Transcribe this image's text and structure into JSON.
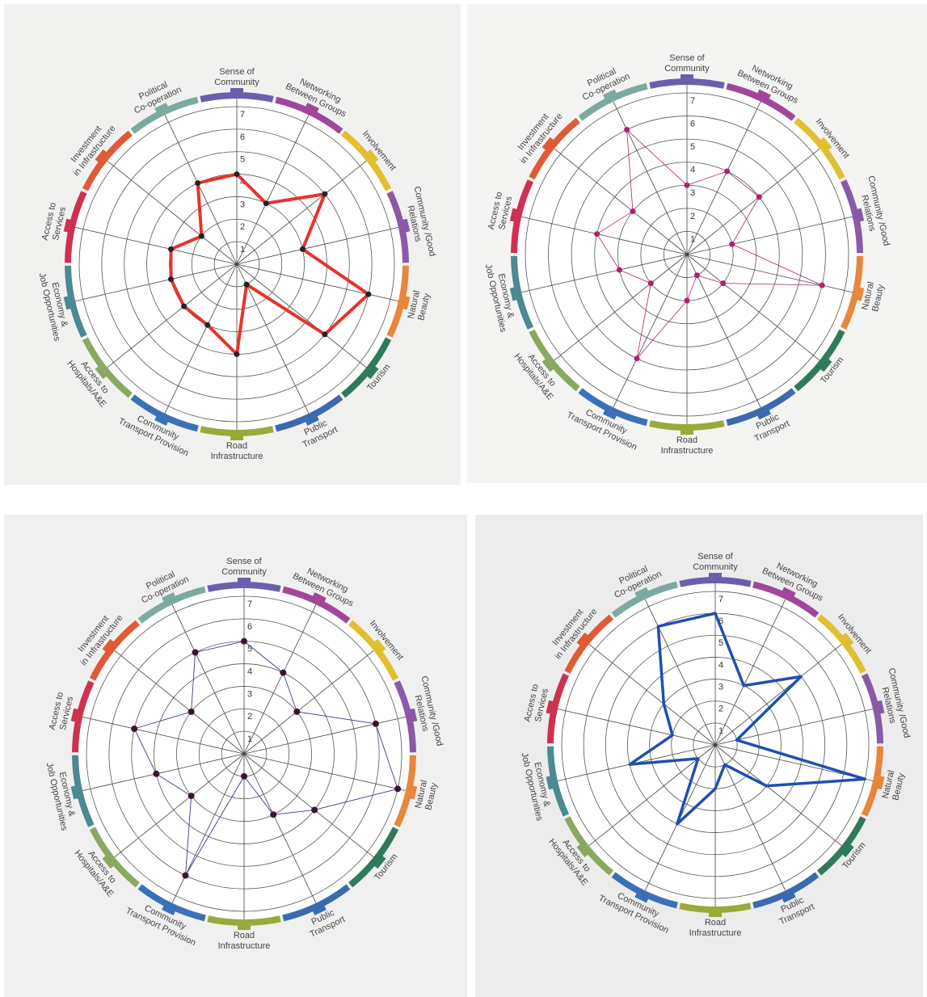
{
  "chart_data": [
    {
      "type": "radar",
      "categories": [
        [
          "Sense of",
          "Community"
        ],
        [
          "Networking",
          "Between Groups"
        ],
        [
          "Involvement"
        ],
        [
          "Community /Good",
          "Relations"
        ],
        [
          "Natural",
          "Beauty"
        ],
        [
          "Tourism"
        ],
        [
          "Public",
          "Transport"
        ],
        [
          "Road",
          "Infrastructure"
        ],
        [
          "Community",
          "Transport Provision"
        ],
        [
          "Access to",
          "Hospitals/A&E"
        ],
        [
          "Economy &",
          "Job Opportunities"
        ],
        [
          "Access to",
          "Services"
        ],
        [
          "Investment",
          "in Infrastructure"
        ],
        [
          "Political",
          "Co-operation"
        ]
      ],
      "values": [
        4,
        3,
        5,
        3,
        6,
        5,
        1,
        4,
        3,
        3,
        3,
        3,
        2,
        4
      ],
      "color": "#e8322c",
      "ylim": [
        0,
        7
      ],
      "yticks": [
        1,
        2,
        3,
        4,
        5,
        6,
        7
      ]
    },
    {
      "type": "radar",
      "categories": [
        [
          "Sense of",
          "Community"
        ],
        [
          "Networking",
          "Between Groups"
        ],
        [
          "Involvement"
        ],
        [
          "Community /Good",
          "Relations"
        ],
        [
          "Natural",
          "Beauty"
        ],
        [
          "Tourism"
        ],
        [
          "Public",
          "Transport"
        ],
        [
          "Road",
          "Infrastructure"
        ],
        [
          "Community",
          "Transport Provision"
        ],
        [
          "Access to",
          "Hospitals/A&E"
        ],
        [
          "Economy &",
          "Job Opportunities"
        ],
        [
          "Access to",
          "Services"
        ],
        [
          "Investment",
          "in Infrastructure"
        ],
        [
          "Political",
          "Co-operation"
        ]
      ],
      "values": [
        3,
        4,
        4,
        2,
        6,
        2,
        1,
        2,
        5,
        2,
        3,
        4,
        3,
        6
      ],
      "color": "#b0206e",
      "ylim": [
        0,
        7
      ],
      "yticks": [
        1,
        2,
        3,
        4,
        5,
        6,
        7
      ]
    },
    {
      "type": "radar",
      "categories": [
        [
          "Sense of",
          "Community"
        ],
        [
          "Networking",
          "Between Groups"
        ],
        [
          "Involvement"
        ],
        [
          "Community /Good",
          "Relations"
        ],
        [
          "Natural",
          "Beauty"
        ],
        [
          "Tourism"
        ],
        [
          "Public",
          "Transport"
        ],
        [
          "Road",
          "Infrastructure"
        ],
        [
          "Community",
          "Transport Provision"
        ],
        [
          "Access to",
          "Hospitals/A&E"
        ],
        [
          "Economy &",
          "Job Opportunities"
        ],
        [
          "Access to",
          "Services"
        ],
        [
          "Investment",
          "in Infrastructure"
        ],
        [
          "Political",
          "Co-operation"
        ]
      ],
      "values": [
        5,
        4,
        3,
        6,
        7,
        4,
        3,
        1,
        6,
        3,
        4,
        5,
        3,
        5
      ],
      "color": "#3a3a8a",
      "ylim": [
        0,
        7
      ],
      "yticks": [
        1,
        2,
        3,
        4,
        5,
        6,
        7
      ]
    },
    {
      "type": "radar",
      "categories": [
        [
          "Sense of",
          "Community"
        ],
        [
          "Networking",
          "Between Groups"
        ],
        [
          "Involvement"
        ],
        [
          "Community /Good",
          "Relations"
        ],
        [
          "Natural",
          "Beauty"
        ],
        [
          "Tourism"
        ],
        [
          "Public",
          "Transport"
        ],
        [
          "Road",
          "Infrastructure"
        ],
        [
          "Community",
          "Transport Provision"
        ],
        [
          "Access to",
          "Hospitals/A&E"
        ],
        [
          "Economy &",
          "Job Opportunities"
        ],
        [
          "Access to",
          "Services"
        ],
        [
          "Investment",
          "in Infrastructure"
        ],
        [
          "Political",
          "Co-operation"
        ]
      ],
      "values": [
        6,
        3,
        5,
        1,
        7,
        3,
        1,
        2,
        4,
        1,
        4,
        2,
        3,
        6
      ],
      "color": "#1f4fb0",
      "ylim": [
        0,
        7
      ],
      "yticks": [
        1,
        2,
        3,
        4,
        5,
        6,
        7
      ]
    }
  ]
}
